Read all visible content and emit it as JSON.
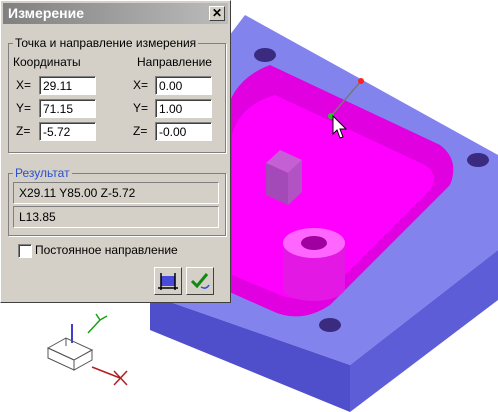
{
  "dialog": {
    "title": "Измерение",
    "close_glyph": "✕",
    "group_point": {
      "legend": "Точка и направление измерения",
      "coords_header": "Координаты",
      "dir_header": "Направление",
      "labels": [
        "X=",
        "Y=",
        "Z="
      ],
      "coords": [
        "29.11",
        "71.15",
        "-5.72"
      ],
      "dir": [
        "0.00",
        "1.00",
        "-0.00"
      ]
    },
    "group_result": {
      "legend": "Результат",
      "line1": "X29.11 Y85.00 Z-5.72",
      "line2": "L13.85"
    },
    "constant_dir": {
      "label": "Постоянное направление",
      "checked": false
    },
    "buttons": {
      "measure_icon": "measure-icon",
      "apply_icon": "apply-check-icon"
    }
  },
  "colors": {
    "part_body": "#6f6fe8",
    "pocket": "#ff00ff",
    "title_bg": "#9a9a9a",
    "result_legend": "#2a4fd0"
  }
}
